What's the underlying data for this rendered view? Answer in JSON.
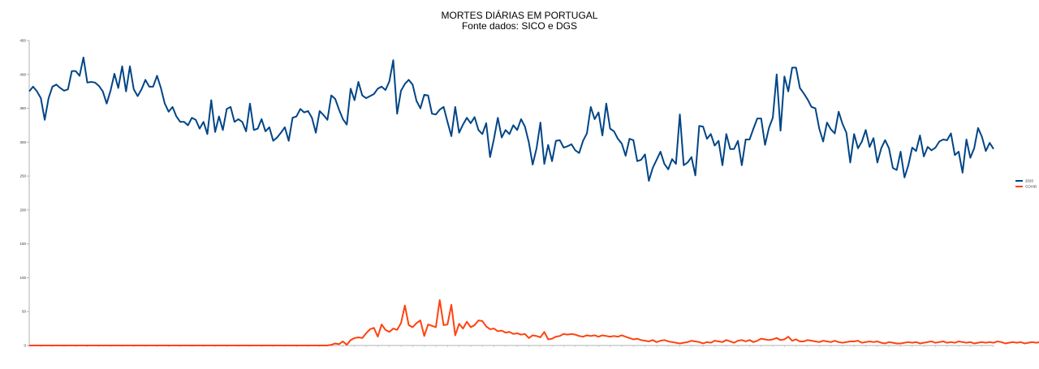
{
  "chart_data": {
    "type": "line",
    "title": "MORTES DIÁRIAS EM PORTUGAL",
    "subtitle": "Fonte dados: SICO e DGS",
    "xlabel": "",
    "ylabel": "",
    "ylim": [
      0,
      450
    ],
    "y_ticks": [
      "0",
      "50",
      "100",
      "150",
      "200",
      "250",
      "300",
      "350",
      "400",
      "450"
    ],
    "grid": false,
    "legend_position": "right",
    "series": [
      {
        "name": "2020",
        "color": "#004586",
        "values": [
          375,
          382,
          375,
          365,
          333,
          365,
          382,
          385,
          380,
          376,
          378,
          405,
          405,
          398,
          425,
          388,
          389,
          388,
          383,
          375,
          357,
          376,
          401,
          380,
          412,
          375,
          412,
          378,
          368,
          378,
          392,
          382,
          382,
          398,
          380,
          357,
          345,
          352,
          338,
          330,
          330,
          325,
          336,
          333,
          320,
          330,
          312,
          362,
          315,
          338,
          318,
          349,
          352,
          330,
          334,
          330,
          316,
          357,
          318,
          320,
          334,
          316,
          322,
          302,
          307,
          314,
          322,
          302,
          336,
          338,
          349,
          344,
          346,
          336,
          314,
          346,
          340,
          333,
          369,
          364,
          348,
          334,
          326,
          379,
          362,
          389,
          369,
          365,
          368,
          371,
          379,
          382,
          377,
          390,
          421,
          342,
          376,
          386,
          392,
          385,
          361,
          350,
          370,
          369,
          342,
          341,
          348,
          352,
          330,
          309,
          352,
          314,
          326,
          336,
          328,
          337,
          318,
          312,
          328,
          278,
          305,
          336,
          307,
          318,
          312,
          325,
          318,
          334,
          323,
          300,
          267,
          291,
          329,
          268,
          296,
          272,
          302,
          303,
          292,
          294,
          297,
          288,
          284,
          302,
          313,
          352,
          334,
          344,
          310,
          357,
          320,
          316,
          305,
          298,
          280,
          305,
          303,
          272,
          274,
          282,
          243,
          262,
          274,
          286,
          268,
          260,
          275,
          268,
          341,
          266,
          270,
          278,
          251,
          324,
          323,
          305,
          312,
          295,
          302,
          266,
          312,
          290,
          290,
          302,
          266,
          304,
          304,
          320,
          335,
          335,
          296,
          321,
          336,
          400,
          317,
          397,
          375,
          410,
          410,
          380,
          372,
          363,
          352,
          350,
          320,
          301,
          329,
          319,
          313,
          345,
          327,
          314,
          270,
          312,
          291,
          301,
          318,
          293,
          306,
          270,
          291,
          303,
          291,
          262,
          259,
          286,
          248,
          266,
          292,
          287,
          310,
          279,
          293,
          288,
          292,
          301,
          304,
          303,
          313,
          281,
          286,
          255,
          304,
          277,
          291,
          321,
          308,
          287,
          299,
          290
        ]
      },
      {
        "name": "COVID",
        "color": "#ff420e",
        "values": [
          0,
          0,
          0,
          0,
          0,
          0,
          0,
          0,
          0,
          0,
          0,
          0,
          0,
          0,
          0,
          0,
          0,
          0,
          0,
          0,
          0,
          0,
          0,
          0,
          0,
          0,
          0,
          0,
          0,
          0,
          0,
          0,
          0,
          0,
          0,
          0,
          0,
          0,
          0,
          0,
          0,
          0,
          0,
          0,
          0,
          0,
          0,
          0,
          0,
          0,
          0,
          0,
          0,
          0,
          0,
          0,
          0,
          0,
          0,
          0,
          0,
          0,
          0,
          0,
          0,
          0,
          0,
          0,
          0,
          0,
          0,
          0,
          0,
          0,
          0,
          0,
          0,
          0,
          1,
          3,
          2,
          6,
          1,
          8,
          11,
          12,
          11,
          18,
          24,
          26,
          13,
          31,
          23,
          20,
          25,
          23,
          33,
          59,
          30,
          27,
          33,
          37,
          14,
          31,
          29,
          27,
          67,
          30,
          31,
          60,
          15,
          32,
          25,
          35,
          27,
          30,
          37,
          36,
          28,
          24,
          25,
          21,
          22,
          19,
          20,
          17,
          18,
          16,
          17,
          11,
          15,
          14,
          12,
          20,
          9,
          10,
          13,
          14,
          17,
          16,
          17,
          16,
          14,
          13,
          15,
          14,
          15,
          13,
          15,
          14,
          13,
          14,
          13,
          15,
          13,
          11,
          9,
          10,
          8,
          7,
          6,
          8,
          5,
          7,
          8,
          6,
          5,
          4,
          3,
          4,
          5,
          7,
          6,
          5,
          3,
          5,
          4,
          7,
          6,
          5,
          8,
          6,
          4,
          7,
          8,
          6,
          8,
          5,
          7,
          10,
          9,
          8,
          9,
          11,
          8,
          9,
          13,
          7,
          9,
          6,
          6,
          8,
          7,
          6,
          5,
          7,
          6,
          5,
          7,
          5,
          4,
          5,
          6,
          6,
          7,
          4,
          5,
          6,
          5,
          6,
          4,
          3,
          5,
          4,
          3,
          3,
          4,
          5,
          4,
          5,
          3,
          4,
          5,
          6,
          4,
          5,
          6,
          4,
          5,
          4,
          6,
          5,
          4,
          5,
          3,
          4,
          5,
          4,
          5,
          4,
          6,
          5,
          3,
          4,
          5,
          4,
          5,
          3,
          4,
          5,
          4,
          5,
          3,
          4
        ]
      }
    ]
  }
}
